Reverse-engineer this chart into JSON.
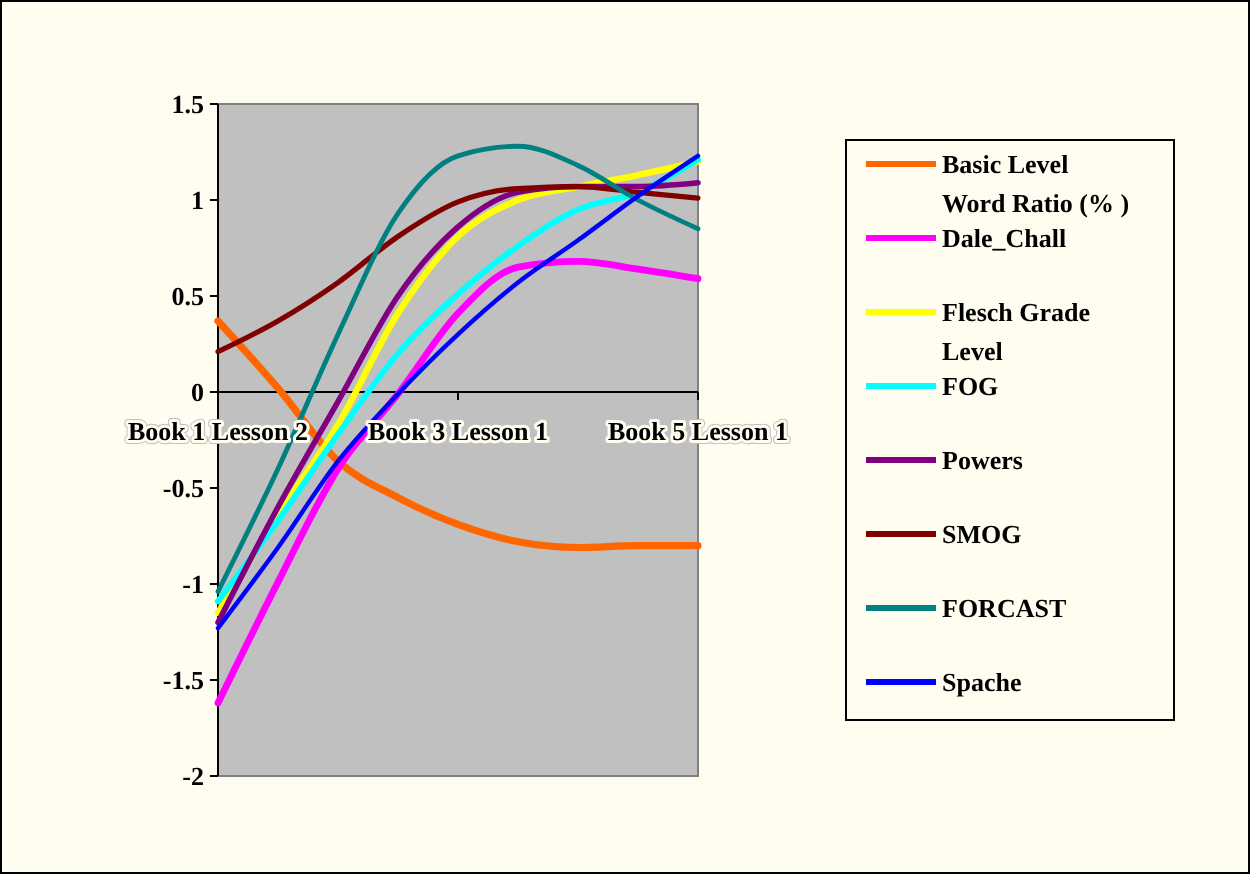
{
  "chart_data": {
    "type": "line",
    "categories": [
      "Book 1 Lesson 2",
      null,
      null,
      null,
      "Book 3 Lesson 1",
      null,
      null,
      null,
      "Book 5 Lesson 1"
    ],
    "ylim": [
      -2,
      1.5
    ],
    "yticks": [
      -2,
      -1.5,
      -1,
      -0.5,
      0,
      0.5,
      1,
      1.5
    ],
    "grid": false,
    "legend": "right",
    "series": [
      {
        "name": "Basic Level Word Ratio (% )",
        "color": "#ff6600",
        "values": [
          0.37,
          0.02,
          -0.36,
          -0.55,
          -0.69,
          -0.78,
          -0.81,
          -0.8,
          -0.8
        ]
      },
      {
        "name": "Dale_Chall",
        "color": "#ff00ff",
        "values": [
          -1.62,
          -0.99,
          -0.4,
          -0.01,
          0.41,
          0.65,
          0.68,
          0.64,
          0.59
        ]
      },
      {
        "name": "Flesch Grade Level",
        "color": "#ffff00",
        "values": [
          -1.15,
          -0.64,
          -0.17,
          0.41,
          0.81,
          1.0,
          1.07,
          1.13,
          1.2
        ]
      },
      {
        "name": "FOG",
        "color": "#00ffff",
        "values": [
          -1.09,
          -0.67,
          -0.22,
          0.2,
          0.51,
          0.76,
          0.95,
          1.04,
          1.21
        ]
      },
      {
        "name": "Powers",
        "color": "#800080",
        "values": [
          -1.2,
          -0.6,
          -0.05,
          0.5,
          0.86,
          1.04,
          1.07,
          1.07,
          1.09
        ]
      },
      {
        "name": "SMOG",
        "color": "#800000",
        "values": [
          0.21,
          0.37,
          0.57,
          0.81,
          0.99,
          1.06,
          1.07,
          1.04,
          1.01
        ]
      },
      {
        "name": "FORCAST",
        "color": "#008080",
        "values": [
          -1.04,
          -0.4,
          0.3,
          0.93,
          1.23,
          1.28,
          1.18,
          1.0,
          0.85
        ]
      },
      {
        "name": "Spache",
        "color": "#0000ff",
        "values": [
          -1.23,
          -0.81,
          -0.36,
          -0.01,
          0.3,
          0.57,
          0.79,
          1.02,
          1.23
        ]
      }
    ]
  }
}
